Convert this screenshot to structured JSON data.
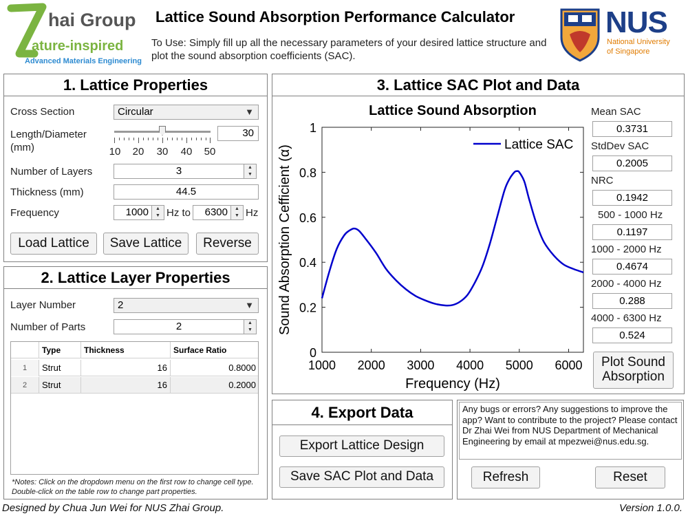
{
  "header": {
    "logo_left_line1": "hai Group",
    "logo_left_line2": "ature-inspired",
    "logo_left_line3": "Advanced Materials Engineering",
    "title": "Lattice Sound Absorption Performance Calculator",
    "instructions": "To Use: Simply fill up all the necessary parameters of your desired lattice structure and plot the sound absorption coefficients (SAC).",
    "logo_right_text": "NUS",
    "logo_right_sub1": "National University",
    "logo_right_sub2": "of Singapore"
  },
  "panel1": {
    "title": "1. Lattice Properties",
    "cross_section_label": "Cross Section",
    "cross_section_value": "Circular",
    "length_label_1": "Length/Diameter",
    "length_label_2": "(mm)",
    "length_value": "30",
    "slider_ticks": [
      "10",
      "20",
      "30",
      "40",
      "50"
    ],
    "slider_fraction": 0.5,
    "layers_label": "Number of Layers",
    "layers_value": "3",
    "thickness_label": "Thickness (mm)",
    "thickness_value": "44.5",
    "frequency_label": "Frequency",
    "freq_from": "1000",
    "freq_hz_to": "Hz to",
    "freq_to": "6300",
    "freq_hz": "Hz",
    "load_button": "Load Lattice",
    "save_button": "Save Lattice",
    "reverse_button": "Reverse"
  },
  "panel2": {
    "title": "2. Lattice Layer Properties",
    "layer_number_label": "Layer Number",
    "layer_number_value": "2",
    "parts_label": "Number of Parts",
    "parts_value": "2",
    "table_headers": [
      "",
      "Type",
      "Thickness",
      "Surface Ratio"
    ],
    "rows": [
      {
        "idx": "1",
        "type": "Strut",
        "thickness": "16",
        "ratio": "0.8000"
      },
      {
        "idx": "2",
        "type": "Strut",
        "thickness": "16",
        "ratio": "0.2000"
      }
    ],
    "notes": "*Notes: Click on the dropdown menu on the first row to change cell type. Double-click on the table row to change part properties."
  },
  "panel3": {
    "title": "3. Lattice SAC Plot and Data",
    "stats": [
      {
        "label": "Mean SAC",
        "value": "0.3731"
      },
      {
        "label": "StdDev SAC",
        "value": "0.2005"
      },
      {
        "label": "NRC",
        "value": "0.1942"
      },
      {
        "label": "500 - 1000 Hz",
        "value": "0.1197"
      },
      {
        "label": "1000 - 2000 Hz",
        "value": "0.4674"
      },
      {
        "label": "2000 - 4000 Hz",
        "value": "0.288"
      },
      {
        "label": "4000 - 6300 Hz",
        "value": "0.524"
      }
    ],
    "plot_button_line1": "Plot Sound",
    "plot_button_line2": "Absorption"
  },
  "chart_data": {
    "type": "line",
    "title": "Lattice Sound Absorption",
    "xlabel": "Frequency (Hz)",
    "ylabel": "Sound Absorption Cefficient (α)",
    "xlim": [
      1000,
      6300
    ],
    "ylim": [
      0,
      1
    ],
    "x_ticks": [
      "1000",
      "2000",
      "3000",
      "4000",
      "5000",
      "6000"
    ],
    "y_ticks": [
      "0",
      "0.2",
      "0.4",
      "0.6",
      "0.8",
      "1"
    ],
    "legend_position": "top-right",
    "series": [
      {
        "name": "Lattice SAC",
        "color": "#0000cc",
        "x": [
          1000,
          1150,
          1300,
          1450,
          1550,
          1650,
          1750,
          1900,
          2100,
          2300,
          2500,
          2700,
          2900,
          3100,
          3300,
          3500,
          3650,
          3800,
          3950,
          4100,
          4250,
          4400,
          4550,
          4700,
          4800,
          4900,
          4950,
          5000,
          5100,
          5200,
          5350,
          5500,
          5700,
          5900,
          6100,
          6300
        ],
        "y": [
          0.24,
          0.36,
          0.46,
          0.52,
          0.54,
          0.55,
          0.54,
          0.5,
          0.44,
          0.37,
          0.32,
          0.28,
          0.25,
          0.23,
          0.215,
          0.208,
          0.21,
          0.225,
          0.255,
          0.31,
          0.38,
          0.48,
          0.6,
          0.72,
          0.77,
          0.8,
          0.805,
          0.8,
          0.76,
          0.68,
          0.57,
          0.49,
          0.43,
          0.39,
          0.37,
          0.355
        ]
      }
    ]
  },
  "panel4": {
    "title": "4. Export Data",
    "export_button": "Export Lattice Design",
    "save_button": "Save SAC Plot and Data"
  },
  "contact": {
    "text": "Any bugs or errors? Any suggestions to improve the app? Want to contribute to the project? Please contact Dr Zhai Wei from NUS Department of Mechanical Engineering by email at mpezwei@nus.edu.sg.",
    "refresh_button": "Refresh",
    "reset_button": "Reset"
  },
  "footer": {
    "credit": "Designed by Chua Jun Wei for NUS Zhai Group.",
    "version": "Version 1.0.0."
  }
}
